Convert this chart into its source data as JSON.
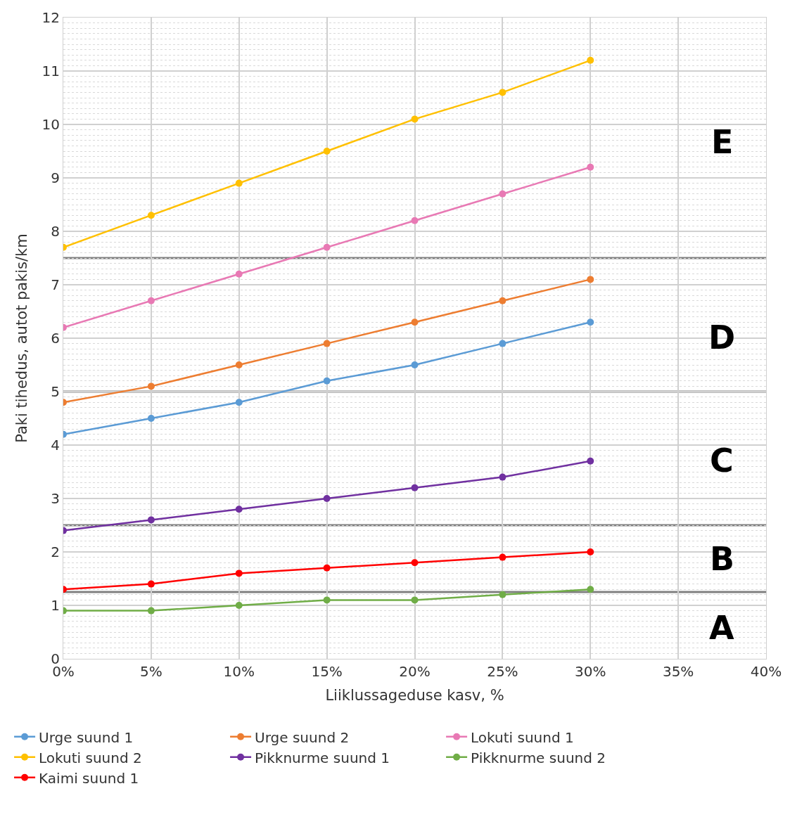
{
  "chart_data": {
    "type": "line",
    "xlabel": "Liiklussageduse kasv, %",
    "ylabel": "Paki tihedus, autot pakis/km",
    "x": [
      0,
      5,
      10,
      15,
      20,
      25,
      30
    ],
    "series": [
      {
        "name": "Urge suund 1",
        "color": "#5b9bd5",
        "values": [
          4.2,
          4.5,
          4.8,
          5.2,
          5.5,
          5.9,
          6.3
        ]
      },
      {
        "name": "Urge suund 2",
        "color": "#ed7d31",
        "values": [
          4.8,
          5.1,
          5.5,
          5.9,
          6.3,
          6.7,
          7.1
        ]
      },
      {
        "name": "Lokuti suund 1",
        "color": "#e879b4",
        "values": [
          6.2,
          6.7,
          7.2,
          7.7,
          8.2,
          8.7,
          9.2
        ]
      },
      {
        "name": "Lokuti suund 2",
        "color": "#ffc000",
        "values": [
          7.7,
          8.3,
          8.9,
          9.5,
          10.1,
          10.6,
          11.2
        ]
      },
      {
        "name": "Pikknurme suund 1",
        "color": "#7030a0",
        "values": [
          2.4,
          2.6,
          2.8,
          3.0,
          3.2,
          3.4,
          3.7
        ]
      },
      {
        "name": "Pikknurme suund 2",
        "color": "#70ad47",
        "values": [
          0.9,
          0.9,
          1.0,
          1.1,
          1.1,
          1.2,
          1.3
        ]
      },
      {
        "name": "Kaimi suund 1",
        "color": "#ff0000",
        "values": [
          1.3,
          1.4,
          1.6,
          1.7,
          1.8,
          1.9,
          2.0
        ]
      }
    ],
    "xlim": [
      0,
      40
    ],
    "xticks": [
      {
        "value": 0,
        "label": "0%"
      },
      {
        "value": 5,
        "label": "5%"
      },
      {
        "value": 10,
        "label": "10%"
      },
      {
        "value": 15,
        "label": "15%"
      },
      {
        "value": 20,
        "label": "20%"
      },
      {
        "value": 25,
        "label": "25%"
      },
      {
        "value": 30,
        "label": "30%"
      },
      {
        "value": 35,
        "label": "35%"
      },
      {
        "value": 40,
        "label": "40%"
      }
    ],
    "ylim": [
      0,
      12
    ],
    "yticks": [
      0,
      1,
      2,
      3,
      4,
      5,
      6,
      7,
      8,
      9,
      10,
      11,
      12
    ],
    "ref_lines": [
      {
        "axis": "y",
        "value": 1.25,
        "color": "#808080"
      },
      {
        "axis": "y",
        "value": 2.5,
        "color": "#808080"
      },
      {
        "axis": "y",
        "value": 5,
        "color": "#808080"
      },
      {
        "axis": "y",
        "value": 7.5,
        "color": "#808080"
      }
    ],
    "annotations": [
      "A",
      "B",
      "C",
      "D",
      "E"
    ],
    "grid": true,
    "legend": "bottom",
    "marker": "circle",
    "line_style": "solid"
  }
}
